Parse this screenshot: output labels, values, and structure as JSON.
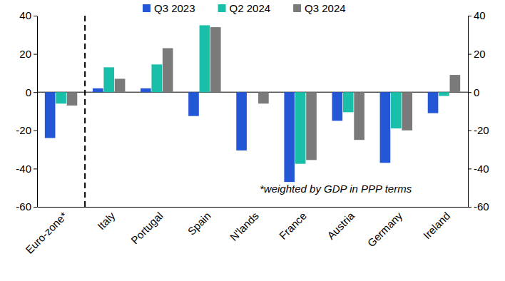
{
  "chart_data": {
    "type": "bar",
    "categories": [
      "Euro-zone*",
      "Italy",
      "Portugal",
      "Spain",
      "N'lands",
      "France",
      "Austria",
      "Germany",
      "Ireland"
    ],
    "series": [
      {
        "name": "Q3 2023",
        "color": "#2457d6",
        "values": [
          -24,
          2,
          2,
          -12.5,
          -30.5,
          -47,
          -15,
          -37,
          -11
        ]
      },
      {
        "name": "Q2 2024",
        "color": "#19bfa9",
        "values": [
          -6,
          13,
          14.5,
          35,
          null,
          -37.5,
          -10.5,
          -19,
          -2
        ]
      },
      {
        "name": "Q3 2024",
        "color": "#7a7a7a",
        "values": [
          -7,
          7,
          23,
          34,
          -6,
          -35.5,
          -25,
          -20,
          9
        ]
      }
    ],
    "ylim": [
      -60,
      40
    ],
    "yticks": [
      -60,
      -40,
      -20,
      0,
      20,
      40
    ],
    "y2lim": [
      -60,
      40
    ],
    "y2ticks": [
      -60,
      -40,
      -20,
      0,
      20,
      40
    ],
    "annotation": "*weighted by GDP in PPP terms",
    "grid": false,
    "legend": "top"
  }
}
